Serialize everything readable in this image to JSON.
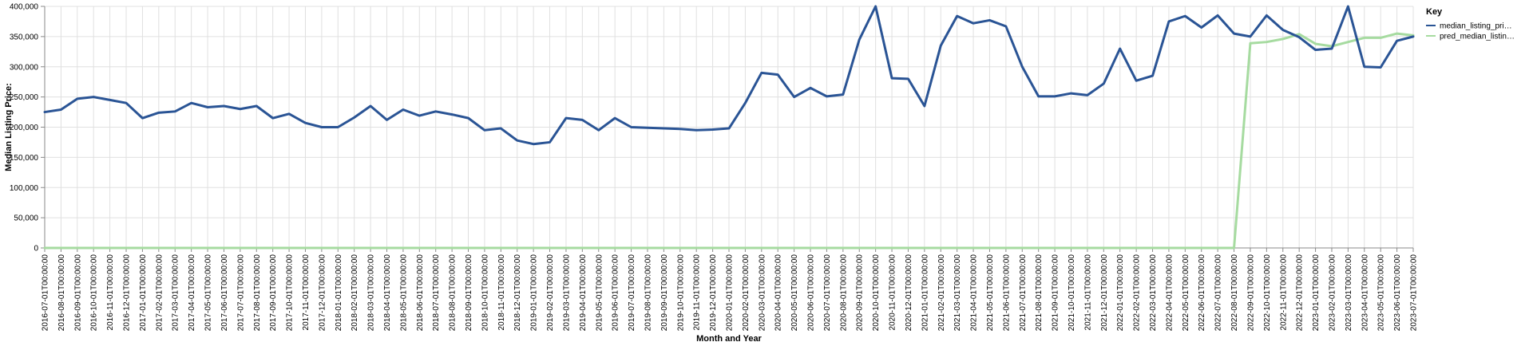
{
  "chart_data": {
    "type": "line",
    "xlabel": "Month and Year",
    "ylabel": "Median Listing Price:",
    "ylim": [
      0,
      400000
    ],
    "yticks": [
      "0",
      "50,000",
      "100,000",
      "150,000",
      "200,000",
      "250,000",
      "300,000",
      "350,000",
      "400,000"
    ],
    "ytick_values": [
      0,
      50000,
      100000,
      150000,
      200000,
      250000,
      300000,
      350000,
      400000
    ],
    "grid": true,
    "legend": {
      "title": "Key",
      "placement": "top-right",
      "entries": [
        "median_listing_pri…",
        "pred_median_listin…"
      ]
    },
    "x": [
      "2016-07-01T00:00:00",
      "2016-08-01T00:00:00",
      "2016-09-01T00:00:00",
      "2016-10-01T00:00:00",
      "2016-11-01T00:00:00",
      "2016-12-01T00:00:00",
      "2017-01-01T00:00:00",
      "2017-02-01T00:00:00",
      "2017-03-01T00:00:00",
      "2017-04-01T00:00:00",
      "2017-05-01T00:00:00",
      "2017-06-01T00:00:00",
      "2017-07-01T00:00:00",
      "2017-08-01T00:00:00",
      "2017-09-01T00:00:00",
      "2017-10-01T00:00:00",
      "2017-11-01T00:00:00",
      "2017-12-01T00:00:00",
      "2018-01-01T00:00:00",
      "2018-02-01T00:00:00",
      "2018-03-01T00:00:00",
      "2018-04-01T00:00:00",
      "2018-05-01T00:00:00",
      "2018-06-01T00:00:00",
      "2018-07-01T00:00:00",
      "2018-08-01T00:00:00",
      "2018-09-01T00:00:00",
      "2018-10-01T00:00:00",
      "2018-11-01T00:00:00",
      "2018-12-01T00:00:00",
      "2019-01-01T00:00:00",
      "2019-02-01T00:00:00",
      "2019-03-01T00:00:00",
      "2019-04-01T00:00:00",
      "2019-05-01T00:00:00",
      "2019-06-01T00:00:00",
      "2019-07-01T00:00:00",
      "2019-08-01T00:00:00",
      "2019-09-01T00:00:00",
      "2019-10-01T00:00:00",
      "2019-11-01T00:00:00",
      "2019-12-01T00:00:00",
      "2020-01-01T00:00:00",
      "2020-02-01T00:00:00",
      "2020-03-01T00:00:00",
      "2020-04-01T00:00:00",
      "2020-05-01T00:00:00",
      "2020-06-01T00:00:00",
      "2020-07-01T00:00:00",
      "2020-08-01T00:00:00",
      "2020-09-01T00:00:00",
      "2020-10-01T00:00:00",
      "2020-11-01T00:00:00",
      "2020-12-01T00:00:00",
      "2021-01-01T00:00:00",
      "2021-02-01T00:00:00",
      "2021-03-01T00:00:00",
      "2021-04-01T00:00:00",
      "2021-05-01T00:00:00",
      "2021-06-01T00:00:00",
      "2021-07-01T00:00:00",
      "2021-08-01T00:00:00",
      "2021-09-01T00:00:00",
      "2021-10-01T00:00:00",
      "2021-11-01T00:00:00",
      "2021-12-01T00:00:00",
      "2022-01-01T00:00:00",
      "2022-02-01T00:00:00",
      "2022-03-01T00:00:00",
      "2022-04-01T00:00:00",
      "2022-05-01T00:00:00",
      "2022-06-01T00:00:00",
      "2022-07-01T00:00:00",
      "2022-08-01T00:00:00",
      "2022-09-01T00:00:00",
      "2022-10-01T00:00:00",
      "2022-11-01T00:00:00",
      "2022-12-01T00:00:00",
      "2023-01-01T00:00:00",
      "2023-02-01T00:00:00",
      "2023-03-01T00:00:00",
      "2023-04-01T00:00:00",
      "2023-05-01T00:00:00",
      "2023-06-01T00:00:00",
      "2023-07-01T00:00:00"
    ],
    "series": [
      {
        "name": "median_listing_pri…",
        "color": "#2a5495",
        "values": [
          225000,
          229000,
          247000,
          250000,
          245000,
          240000,
          215000,
          224000,
          226000,
          240000,
          233000,
          235000,
          230000,
          235000,
          215000,
          222000,
          207000,
          200000,
          200000,
          216000,
          235000,
          212000,
          229000,
          219000,
          226000,
          221000,
          215000,
          195000,
          198000,
          178000,
          172000,
          175000,
          215000,
          212000,
          195000,
          215000,
          200000,
          199000,
          198000,
          197000,
          195000,
          196000,
          198000,
          240000,
          290000,
          287000,
          250000,
          265000,
          251000,
          254000,
          345000,
          400000,
          281000,
          280000,
          235000,
          335000,
          384000,
          372000,
          377000,
          367000,
          300000,
          251000,
          251000,
          256000,
          253000,
          272000,
          330000,
          277000,
          285000,
          375000,
          384000,
          365000,
          385000,
          355000,
          350000,
          385000,
          361000,
          349000,
          328000,
          330000,
          400000,
          300000,
          299000,
          343000,
          350000
        ]
      },
      {
        "name": "pred_median_listin…",
        "color": "#a6dba0",
        "values": [
          0,
          0,
          0,
          0,
          0,
          0,
          0,
          0,
          0,
          0,
          0,
          0,
          0,
          0,
          0,
          0,
          0,
          0,
          0,
          0,
          0,
          0,
          0,
          0,
          0,
          0,
          0,
          0,
          0,
          0,
          0,
          0,
          0,
          0,
          0,
          0,
          0,
          0,
          0,
          0,
          0,
          0,
          0,
          0,
          0,
          0,
          0,
          0,
          0,
          0,
          0,
          0,
          0,
          0,
          0,
          0,
          0,
          0,
          0,
          0,
          0,
          0,
          0,
          0,
          0,
          0,
          0,
          0,
          0,
          0,
          0,
          0,
          0,
          0,
          339000,
          341000,
          346000,
          354000,
          338000,
          334000,
          341000,
          348000,
          348000,
          355000,
          352000
        ]
      }
    ]
  }
}
